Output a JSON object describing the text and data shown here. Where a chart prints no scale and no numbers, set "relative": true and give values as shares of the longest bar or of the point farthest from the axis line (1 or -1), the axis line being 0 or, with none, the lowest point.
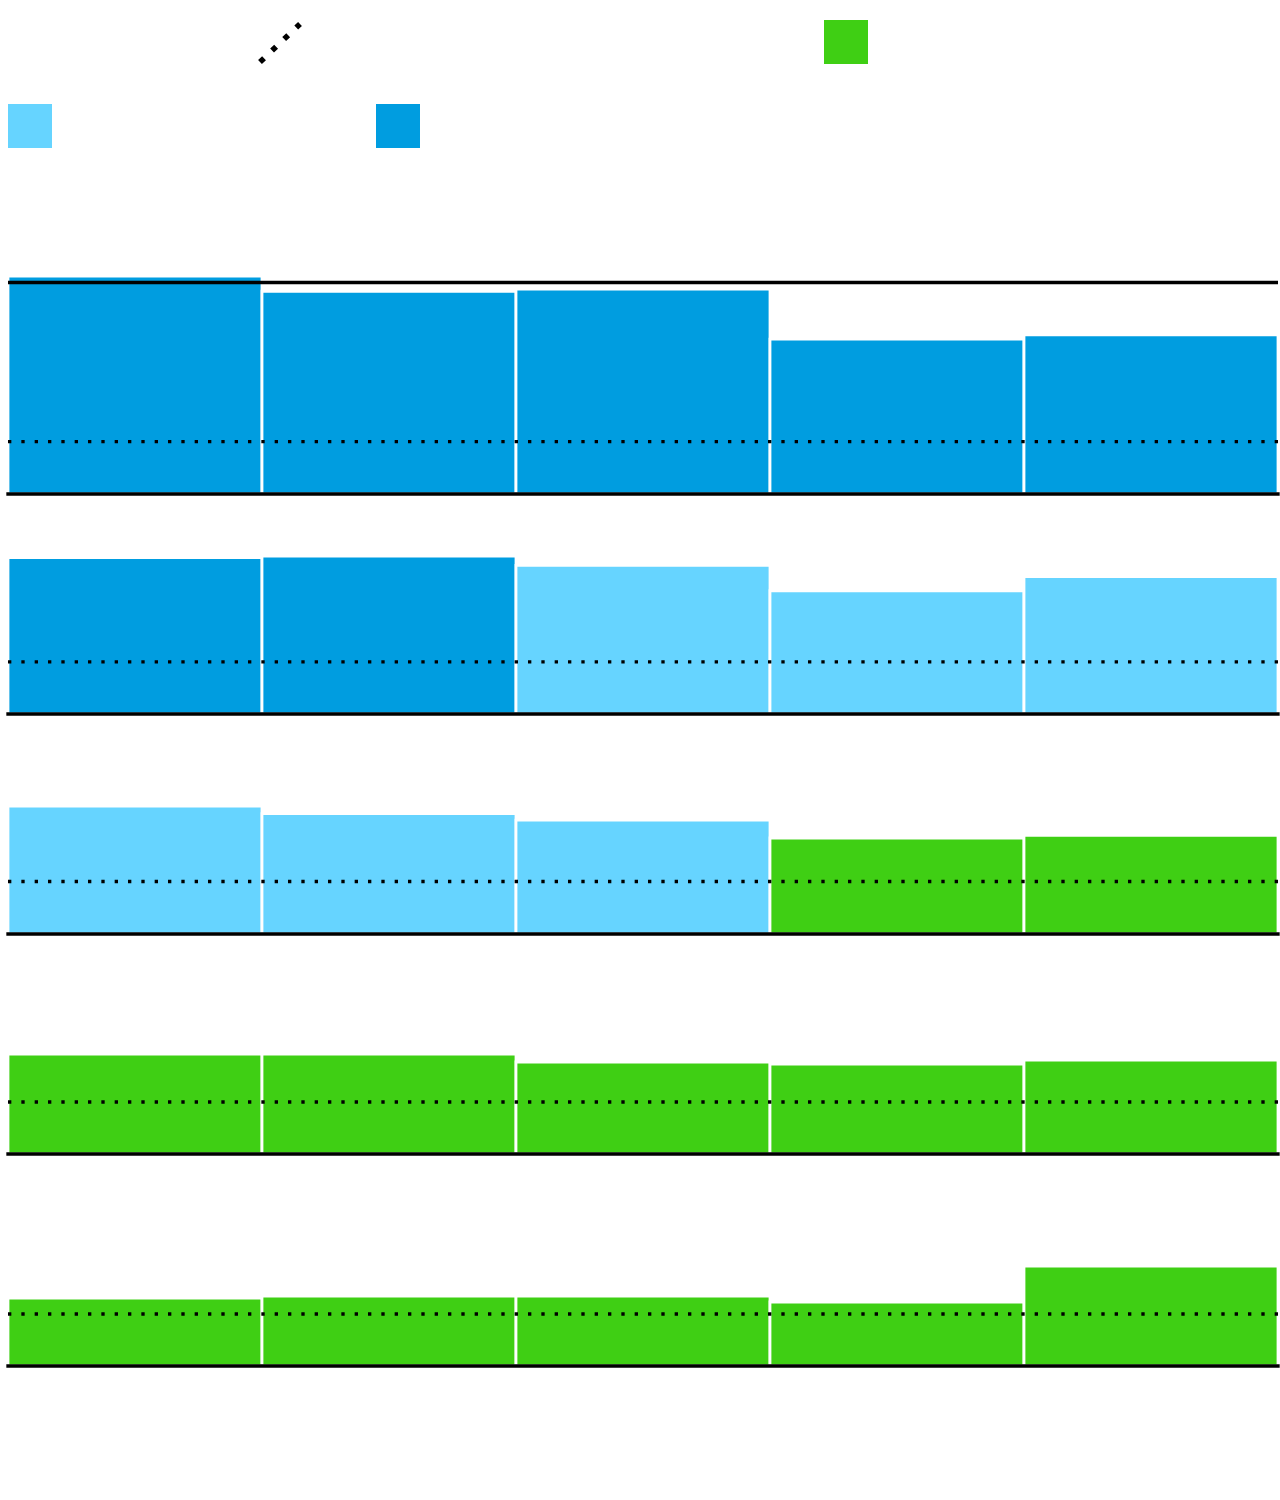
{
  "chart_data": [
    {
      "type": "bar",
      "relative": true,
      "categories": [
        null,
        null,
        null,
        null,
        null
      ],
      "values": [
        1,
        0.93,
        0.94,
        0.71,
        0.73
      ],
      "colors": [
        "#009de0",
        "#009de0",
        "#009de0",
        "#009de0",
        "#009de0"
      ],
      "tick_labels": false,
      "ref_lines": [
        {
          "axis": "y",
          "value": 0.24,
          "line_style": "dotted",
          "color": "#000000"
        },
        {
          "axis": "y",
          "value": 0.97,
          "line_style": "solid",
          "color": "#000000"
        }
      ]
    },
    {
      "type": "bar",
      "relative": true,
      "categories": [
        null,
        null,
        null,
        null,
        null
      ],
      "values": [
        0.99,
        1,
        0.94,
        0.78,
        0.87
      ],
      "colors": [
        "#009de0",
        "#009de0",
        "#66d4ff",
        "#66d4ff",
        "#66d4ff"
      ],
      "tick_labels": false,
      "ref_lines": [
        {
          "axis": "y",
          "value": 0.33,
          "line_style": "dotted",
          "color": "#000000"
        }
      ]
    },
    {
      "type": "bar",
      "relative": true,
      "categories": [
        null,
        null,
        null,
        null,
        null
      ],
      "values": [
        1,
        0.94,
        0.89,
        0.75,
        0.77
      ],
      "colors": [
        "#66d4ff",
        "#66d4ff",
        "#66d4ff",
        "#3fcf14",
        "#3fcf14"
      ],
      "tick_labels": false,
      "ref_lines": [
        {
          "axis": "y",
          "value": 0.41,
          "line_style": "dotted",
          "color": "#000000"
        }
      ]
    },
    {
      "type": "bar",
      "relative": true,
      "categories": [
        null,
        null,
        null,
        null,
        null
      ],
      "values": [
        1,
        1,
        0.92,
        0.9,
        0.94
      ],
      "colors": [
        "#3fcf14",
        "#3fcf14",
        "#3fcf14",
        "#3fcf14",
        "#3fcf14"
      ],
      "tick_labels": false,
      "ref_lines": [
        {
          "axis": "y",
          "value": 0.52,
          "line_style": "dotted",
          "color": "#000000"
        }
      ]
    },
    {
      "type": "bar",
      "relative": true,
      "categories": [
        null,
        null,
        null,
        null,
        null
      ],
      "values": [
        0.68,
        0.7,
        0.7,
        0.64,
        1
      ],
      "colors": [
        "#3fcf14",
        "#3fcf14",
        "#3fcf14",
        "#3fcf14",
        "#3fcf14"
      ],
      "tick_labels": false,
      "ref_lines": [
        {
          "axis": "y",
          "value": 0.52,
          "line_style": "dotted",
          "color": "#000000"
        }
      ]
    }
  ]
}
